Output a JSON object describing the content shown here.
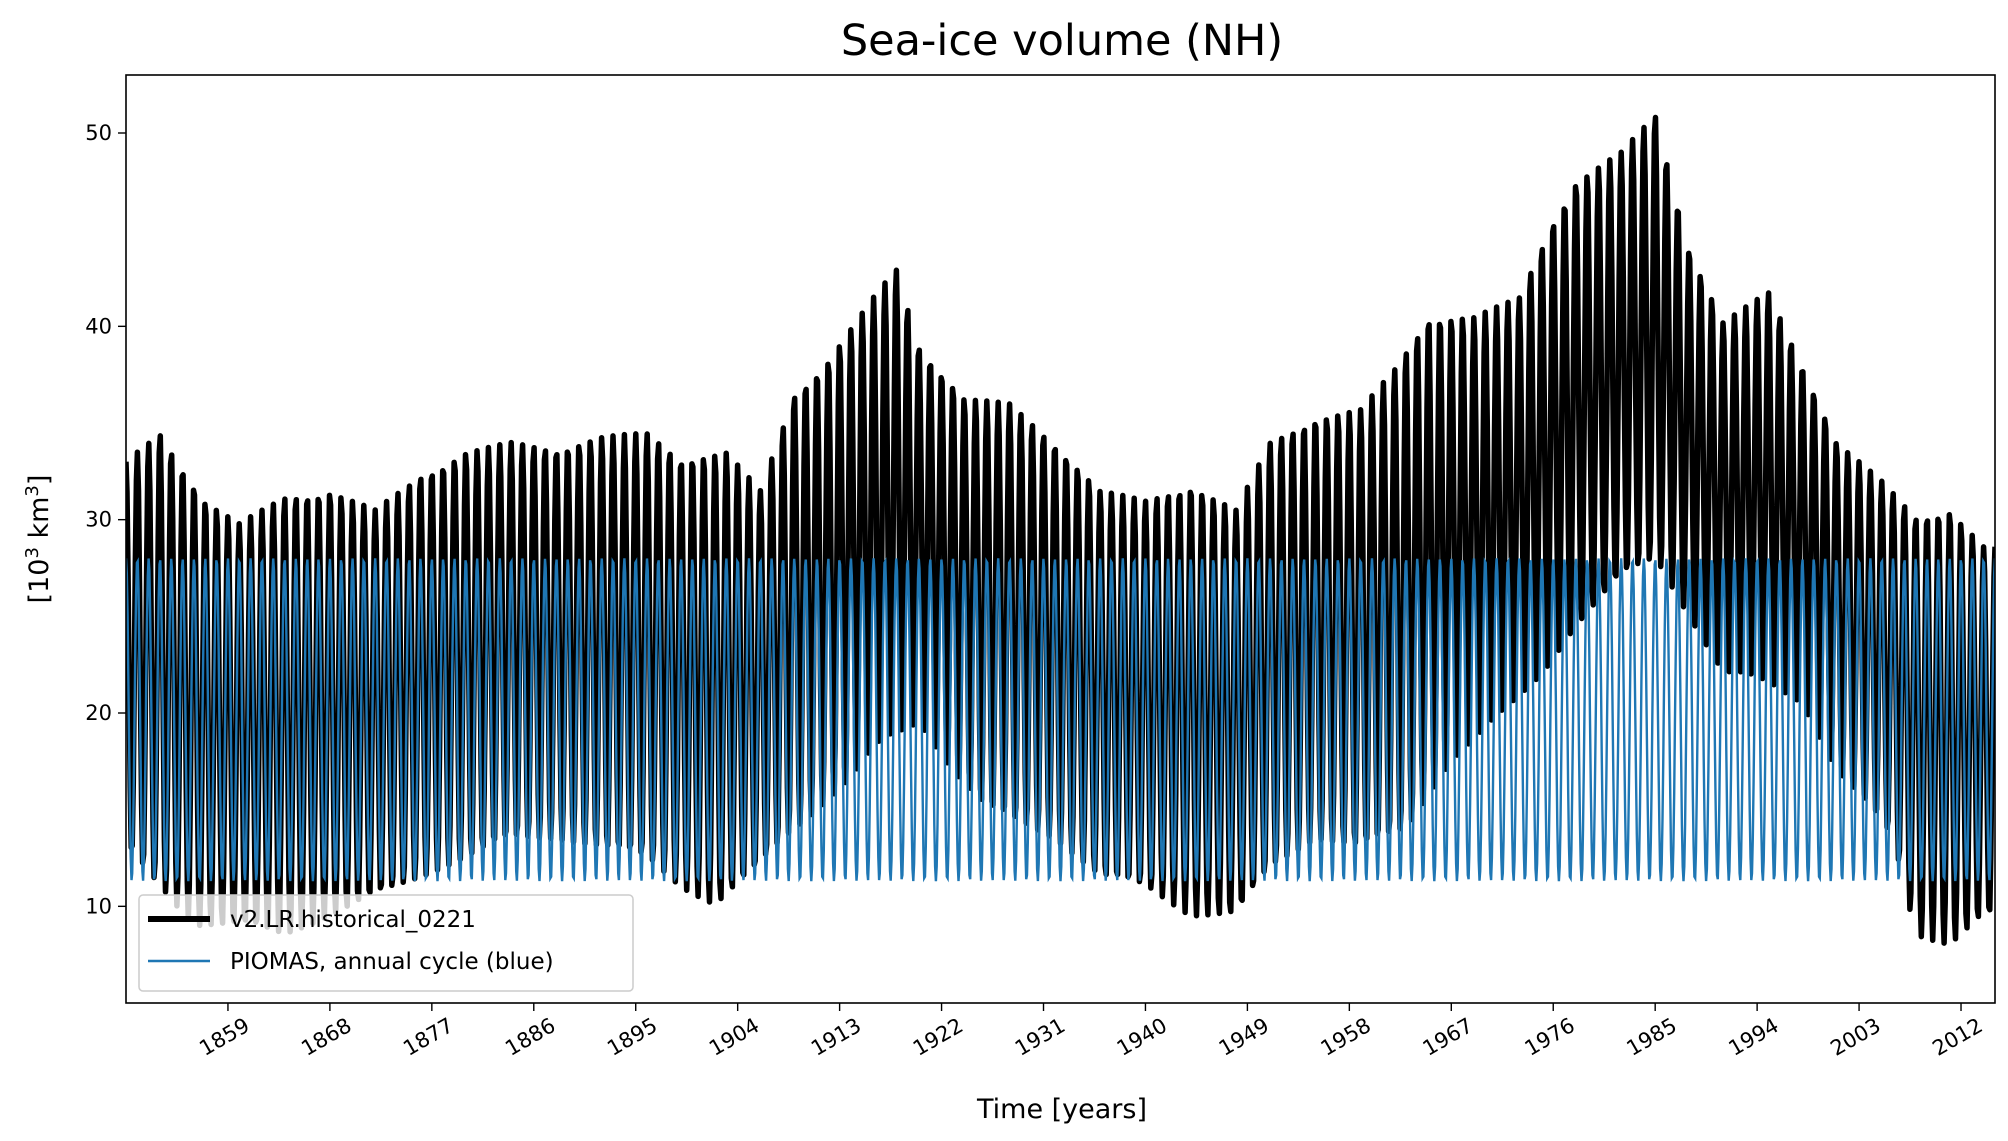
{
  "chart_data": {
    "type": "line",
    "title": "Sea-ice volume (NH)",
    "xlabel": "Time [years]",
    "ylabel_base": "[10",
    "ylabel_sup1": "3",
    "ylabel_mid": " km",
    "ylabel_sup2": "3",
    "ylabel_end": "]",
    "xlim": [
      1850,
      2015
    ],
    "ylim": [
      5,
      53
    ],
    "yticks": [
      10,
      20,
      30,
      40,
      50
    ],
    "xticks": [
      1859,
      1868,
      1877,
      1886,
      1895,
      1904,
      1913,
      1922,
      1931,
      1940,
      1949,
      1958,
      1967,
      1976,
      1985,
      1994,
      2003,
      2012
    ],
    "grid": false,
    "legend_position": "lower-left",
    "series": [
      {
        "name": "v2.LR.historical_0221",
        "color": "#000000",
        "style": "thick",
        "period_years": 1,
        "annual_max_keyframes": {
          "years": [
            1850,
            1853,
            1857,
            1860,
            1864,
            1868,
            1872,
            1876,
            1880,
            1884,
            1888,
            1892,
            1896,
            1899,
            1903,
            1906,
            1909,
            1912,
            1916,
            1918,
            1920,
            1924,
            1928,
            1932,
            1936,
            1940,
            1944,
            1948,
            1951,
            1955,
            1959,
            1962,
            1965,
            1969,
            1973,
            1976,
            1978,
            1982,
            1985,
            1988,
            1991,
            1995,
            1998,
            2001,
            2005,
            2008,
            2011,
            2014
          ],
          "values": [
            33,
            34.5,
            31,
            29.8,
            31.2,
            31.5,
            30.5,
            32.3,
            33.5,
            34,
            33.7,
            34.3,
            34.5,
            33.2,
            33.5,
            31.5,
            36.5,
            38.3,
            41.5,
            43,
            39,
            36.3,
            36,
            34,
            31.5,
            31,
            31.8,
            30.5,
            34,
            35.3,
            35.7,
            37.8,
            40.5,
            40.5,
            41.5,
            45.5,
            47.5,
            49,
            51,
            44,
            40.2,
            41.8,
            38,
            34,
            32,
            30.2,
            30.5,
            28.6
          ]
        },
        "annual_min_keyframes": {
          "years": [
            1850,
            1853,
            1856,
            1860,
            1864,
            1868,
            1872,
            1876,
            1880,
            1884,
            1888,
            1892,
            1896,
            1899,
            1902,
            1905,
            1908,
            1911,
            1914,
            1917,
            1920,
            1923,
            1926,
            1929,
            1932,
            1936,
            1940,
            1944,
            1948,
            1951,
            1955,
            1959,
            1963,
            1967,
            1971,
            1975,
            1978,
            1982,
            1985,
            1988,
            1991,
            1995,
            1998,
            2001,
            2004,
            2006,
            2008,
            2011,
            2014
          ],
          "values": [
            13,
            11,
            9,
            9,
            8.5,
            9.5,
            10.5,
            11.5,
            12.5,
            13.5,
            13.5,
            13,
            12.5,
            11,
            10,
            11.5,
            13.5,
            15,
            16.5,
            18.5,
            19.5,
            17,
            15,
            14.3,
            13.5,
            11.5,
            11,
            9.5,
            9.5,
            12,
            13.5,
            13,
            14,
            17.5,
            19.5,
            22,
            24.5,
            27,
            28,
            25,
            22,
            21.5,
            20.5,
            17,
            15,
            13.5,
            8.5,
            8,
            9.5
          ]
        }
      },
      {
        "name": "PIOMAS, annual cycle (blue)",
        "color": "#1f77b4",
        "style": "thin",
        "period_years": 1,
        "annual_max": 28,
        "annual_min": 11.3
      }
    ]
  }
}
